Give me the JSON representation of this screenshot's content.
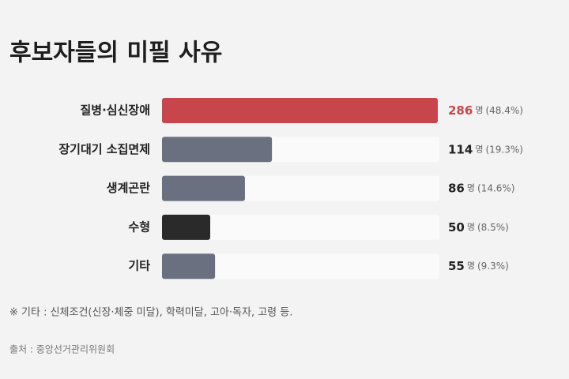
{
  "chart_data": {
    "type": "hbar",
    "title": "후보자들의 미필 사유",
    "categories": [
      "질병·심신장애",
      "장기대기 소집면제",
      "생계곤란",
      "수형",
      "기타"
    ],
    "values": [
      286,
      114,
      86,
      50,
      55
    ],
    "unit": "명",
    "percent_labels": [
      "(48.4%)",
      "(19.3%)",
      "(14.6%)",
      "(8.5%)",
      "(9.3%)"
    ],
    "colors": [
      "#c8454b",
      "#6b7080",
      "#6b7080",
      "#2a2a2a",
      "#6b7080"
    ],
    "label_colors": [
      "#c8454b",
      "#222222",
      "#222222",
      "#222222",
      "#222222"
    ],
    "xlim": [
      0,
      286
    ],
    "note": "※ 기타 : 신체조건(신장·체중 미달), 학력미달, 고아·독자, 고령 등.",
    "source": "출처 : 중앙선거관리위원회"
  }
}
